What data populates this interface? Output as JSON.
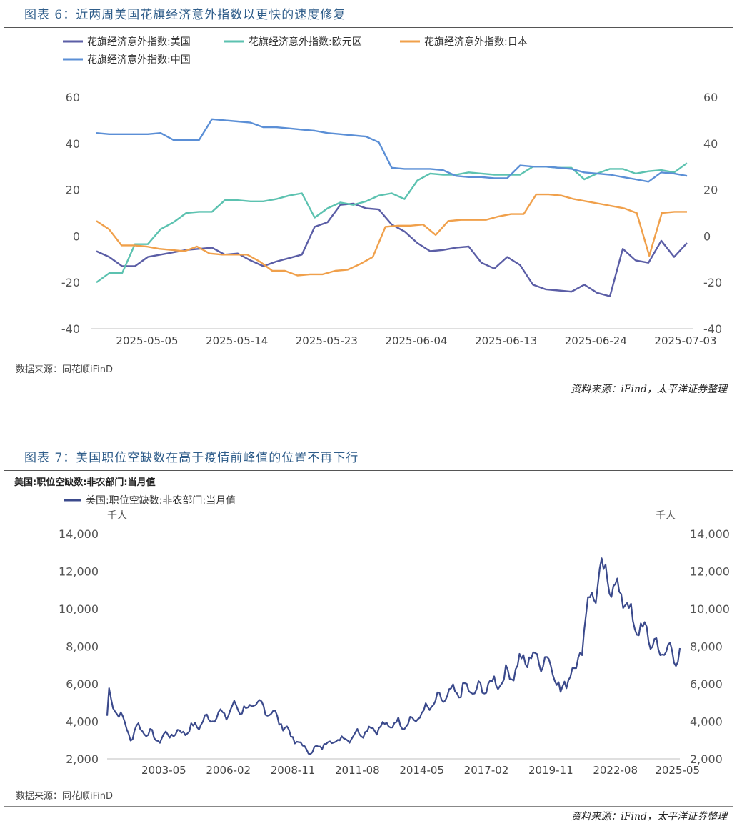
{
  "figure6": {
    "title": "图表 6：近两周美国花旗经济意外指数以更快的速度修复",
    "source_inner": "数据来源：同花顺iFinD",
    "source_outer": "资料来源：iFind，太平洋证券整理"
  },
  "figure7": {
    "title": "图表 7：美国职位空缺数在高于疫情前峰值的位置不再下行",
    "subtitle": "美国:职位空缺数:非农部门:当月值",
    "source_inner": "数据来源：同花顺iFinD",
    "source_outer": "资料来源：iFind，太平洋证券整理"
  },
  "chart_data": [
    {
      "type": "line",
      "title": "近两周美国花旗经济意外指数以更快的速度修复",
      "ylim": [
        -40,
        60
      ],
      "yticks": [
        "60",
        "40",
        "20",
        "0",
        "-20",
        "-40"
      ],
      "yticks_right": [
        "60",
        "40",
        "20",
        "0",
        "-20",
        "-40"
      ],
      "xticks": [
        "2025-05-05",
        "2025-05-14",
        "2025-05-23",
        "2025-06-04",
        "2025-06-13",
        "2025-06-24",
        "2025-07-03"
      ],
      "grid": false,
      "legend": "top-left",
      "series": [
        {
          "name": "花旗经济意外指数:美国",
          "color": "#5b5ea6",
          "values": [
            -6.5,
            -9,
            -13,
            -13,
            -9,
            -8,
            -7,
            -6,
            -5.5,
            -5,
            -8,
            -7.5,
            -10.5,
            -13,
            -11,
            -9.5,
            -8,
            4,
            6,
            13.5,
            14,
            12,
            11.5,
            5,
            2,
            -3,
            -6.5,
            -6,
            -5,
            -4.5,
            -11.5,
            -14,
            -9,
            -12.5,
            -21,
            -23,
            -23.5,
            -24,
            -21,
            -24.5,
            -26,
            -5.5,
            -10.5,
            -11.5,
            -2,
            -9,
            -3
          ]
        },
        {
          "name": "花旗经济意外指数:欧元区",
          "color": "#5cc2b0",
          "values": [
            -20,
            -16,
            -16,
            -3.5,
            -3.5,
            3,
            6,
            10,
            10.5,
            10.5,
            15.5,
            15.5,
            15,
            15,
            16,
            17.5,
            18.5,
            8,
            12,
            14.5,
            13.5,
            15,
            17.5,
            18.5,
            16,
            24,
            27,
            26.5,
            26.5,
            27.5,
            27,
            26.5,
            26.5,
            26.5,
            30,
            30,
            29.5,
            29.5,
            24.5,
            27,
            29,
            29,
            27,
            28,
            28.5,
            27.5,
            31.5
          ]
        },
        {
          "name": "花旗经济意外指数:日本",
          "color": "#f0a04b",
          "values": [
            6.5,
            3,
            -4,
            -4,
            -4.5,
            -5.5,
            -6,
            -6.5,
            -4.5,
            -7.5,
            -8,
            -8,
            -8,
            -11,
            -15,
            -15,
            -17,
            -16.5,
            -16.5,
            -15,
            -14.5,
            -12,
            -9,
            4,
            4.5,
            4.5,
            5,
            0.5,
            6.5,
            7,
            7,
            7,
            8.5,
            9.5,
            9.5,
            18,
            18,
            17.5,
            16,
            15,
            14,
            13,
            12,
            10,
            -8.5,
            10,
            10.5,
            10.5
          ]
        },
        {
          "name": "花旗经济意外指数:中国",
          "color": "#5b8fd6",
          "values": [
            44.5,
            44,
            44,
            44,
            44,
            44.5,
            41.5,
            41.5,
            41.5,
            50.5,
            50,
            49.5,
            49,
            47,
            47,
            46.5,
            46,
            45.5,
            44.5,
            44,
            43.5,
            43,
            40.5,
            29.5,
            29,
            29,
            29,
            28.5,
            26,
            25.5,
            25.5,
            25,
            25,
            30.5,
            30,
            30,
            29.5,
            29,
            27.5,
            27,
            26.5,
            25.5,
            24.5,
            23.5,
            27.5,
            27,
            26
          ]
        }
      ]
    },
    {
      "type": "line",
      "title": "美国:职位空缺数:非农部门:当月值",
      "ylabel": "千人",
      "ylabel_right": "千人",
      "ylim": [
        2000,
        14000
      ],
      "yticks": [
        "14,000",
        "12,000",
        "10,000",
        "8,000",
        "6,000",
        "4,000",
        "2,000"
      ],
      "yticks_right": [
        "14,000",
        "12,000",
        "10,000",
        "8,000",
        "6,000",
        "4,000",
        "2,000"
      ],
      "xticks": [
        "2003-05",
        "2006-02",
        "2008-11",
        "2011-08",
        "2014-05",
        "2017-02",
        "2019-11",
        "2022-08",
        "2025-05"
      ],
      "grid": false,
      "legend": "top-left",
      "series": [
        {
          "name": "美国:职位空缺数:非农部门:当月值",
          "color": "#3b4a8c",
          "x_start": "2000-12",
          "x_end": "2025-05",
          "anchors": [
            [
              "2000-12",
              4300
            ],
            [
              "2001-01",
              5500
            ],
            [
              "2001-03",
              4700
            ],
            [
              "2001-06",
              4600
            ],
            [
              "2001-09",
              3800
            ],
            [
              "2001-12",
              3100
            ],
            [
              "2002-03",
              3700
            ],
            [
              "2002-09",
              3400
            ],
            [
              "2003-02",
              3000
            ],
            [
              "2003-07",
              3300
            ],
            [
              "2004-01",
              3400
            ],
            [
              "2004-07",
              3600
            ],
            [
              "2005-01",
              4000
            ],
            [
              "2005-07",
              4300
            ],
            [
              "2006-01",
              4400
            ],
            [
              "2006-06",
              4800
            ],
            [
              "2006-12",
              4600
            ],
            [
              "2007-03",
              4900
            ],
            [
              "2007-09",
              4700
            ],
            [
              "2008-01",
              4400
            ],
            [
              "2008-06",
              3800
            ],
            [
              "2008-12",
              3000
            ],
            [
              "2009-06",
              2500
            ],
            [
              "2009-09",
              2400
            ],
            [
              "2010-03",
              2800
            ],
            [
              "2010-09",
              3000
            ],
            [
              "2011-03",
              3100
            ],
            [
              "2011-09",
              3400
            ],
            [
              "2012-03",
              3600
            ],
            [
              "2012-09",
              3700
            ],
            [
              "2013-03",
              3900
            ],
            [
              "2013-09",
              3900
            ],
            [
              "2014-03",
              4200
            ],
            [
              "2014-09",
              4800
            ],
            [
              "2015-03",
              5200
            ],
            [
              "2015-09",
              5500
            ],
            [
              "2016-03",
              5700
            ],
            [
              "2016-09",
              5600
            ],
            [
              "2017-03",
              5900
            ],
            [
              "2017-09",
              6200
            ],
            [
              "2018-03",
              6600
            ],
            [
              "2018-09",
              7300
            ],
            [
              "2019-03",
              7400
            ],
            [
              "2019-09",
              7200
            ],
            [
              "2020-01",
              6800
            ],
            [
              "2020-04",
              5300
            ],
            [
              "2020-08",
              6600
            ],
            [
              "2020-12",
              6800
            ],
            [
              "2021-03",
              8300
            ],
            [
              "2021-06",
              10200
            ],
            [
              "2021-09",
              11000
            ],
            [
              "2021-12",
              11400
            ],
            [
              "2022-03",
              12000
            ],
            [
              "2022-06",
              11200
            ],
            [
              "2022-12",
              10800
            ],
            [
              "2023-03",
              9800
            ],
            [
              "2023-07",
              8900
            ],
            [
              "2023-12",
              8800
            ],
            [
              "2024-03",
              8200
            ],
            [
              "2024-07",
              7700
            ],
            [
              "2024-11",
              7800
            ],
            [
              "2025-02",
              7500
            ],
            [
              "2025-05",
              7700
            ]
          ]
        }
      ]
    }
  ]
}
